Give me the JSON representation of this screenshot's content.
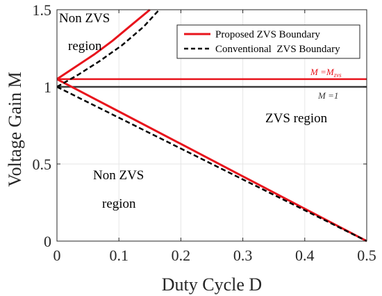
{
  "chart_data": {
    "type": "line",
    "xlabel": "Duty Cycle D",
    "ylabel": "Voltage Gain M",
    "xlim": [
      0,
      0.5
    ],
    "ylim": [
      0,
      1.5
    ],
    "xticks": [
      "0",
      "0.1",
      "0.2",
      "0.3",
      "0.4",
      "0.5"
    ],
    "yticks": [
      "0",
      "0.5",
      "1",
      "1.5"
    ],
    "xtick_values": [
      0,
      0.1,
      0.2,
      0.3,
      0.4,
      0.5
    ],
    "ytick_values": [
      0,
      0.5,
      1,
      1.5
    ],
    "grid": true,
    "legend_position": "top-right",
    "series": [
      {
        "name": "Proposed ZVS Boundary",
        "color": "#e8141c",
        "style": "solid",
        "segments": [
          {
            "x": [
              0.0,
              0.03,
              0.06,
              0.09,
              0.12,
              0.15
            ],
            "y": [
              1.05,
              1.13,
              1.21,
              1.3,
              1.4,
              1.5
            ]
          },
          {
            "x": [
              0.0,
              0.1,
              0.2,
              0.3,
              0.4,
              0.5
            ],
            "y": [
              1.05,
              0.84,
              0.63,
              0.42,
              0.21,
              0.0
            ]
          }
        ]
      },
      {
        "name": "Conventional  ZVS Boundary",
        "color": "#000000",
        "style": "dashed",
        "segments": [
          {
            "x": [
              0.0,
              0.035,
              0.07,
              0.105,
              0.14,
              0.165
            ],
            "y": [
              1.0,
              1.08,
              1.17,
              1.27,
              1.39,
              1.5
            ]
          },
          {
            "x": [
              0.0,
              0.1,
              0.2,
              0.3,
              0.4,
              0.5
            ],
            "y": [
              1.0,
              0.8,
              0.6,
              0.4,
              0.2,
              0.0
            ]
          }
        ]
      }
    ],
    "reference_lines": [
      {
        "label": "M =M",
        "subscript": "zvs",
        "y": 1.05,
        "color": "#e8141c"
      },
      {
        "label": "M =1",
        "y": 1.0,
        "color": "#3a3a3a"
      }
    ],
    "annotations": {
      "top_left_line1": "Non ZVS",
      "top_left_line2": "region",
      "bottom_line1": "Non ZVS",
      "bottom_line2": "region",
      "right": "ZVS region"
    }
  }
}
